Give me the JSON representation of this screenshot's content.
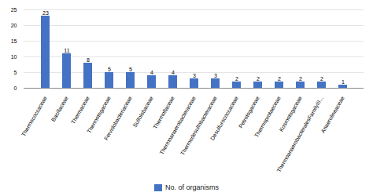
{
  "chart_data": {
    "type": "bar",
    "categories": [
      "Thermococcaceae",
      "Bacillaceae",
      "Thermaceae",
      "Thermotogaceae",
      "Fervidobacteriaceae",
      "Sulfolobaceae",
      "Thermoflaceae",
      "Thermoanaerobacteraceae",
      "Thermodesulfobacteraceae",
      "Desulfurococcaceae",
      "Petrotogaceae",
      "Thermoprotaeceae",
      "Kosmotogaceae",
      "ThermoanaerobacteralesFamilyIII...",
      "Anaerolineaceae"
    ],
    "series": [
      {
        "name": "No. of organisms",
        "color": "#4472C4",
        "values": [
          23,
          11,
          8,
          5,
          5,
          4,
          4,
          3,
          3,
          2,
          2,
          2,
          2,
          2,
          1
        ]
      }
    ],
    "ylim": [
      0,
      25
    ],
    "yticks": [
      0,
      5,
      10,
      15,
      20,
      25
    ],
    "grid": true,
    "data_labels": true,
    "legend": "bottom"
  }
}
